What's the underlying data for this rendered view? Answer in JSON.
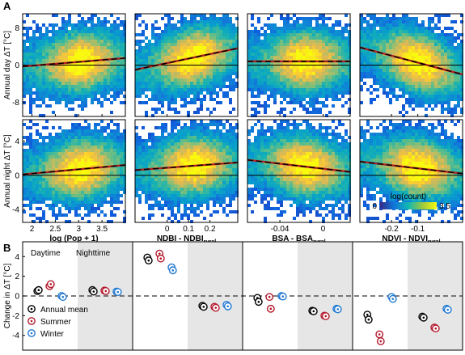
{
  "figure": {
    "panel_a": "A",
    "panel_b": "B"
  },
  "colors": {
    "annual": "#000000",
    "summer": "#b2182b",
    "winter": "#1f78d1",
    "shade": "#e6e6e6",
    "trend": "#b22222"
  },
  "chart_data": [
    {
      "type": "heatmap",
      "id": "row-day",
      "ylabel": "Annual day ΔT [°C]",
      "ylim": [
        -11,
        11
      ],
      "yticks": [
        -8,
        0,
        8
      ],
      "panels": [
        {
          "xlabel": "",
          "xlim": [
            1.8,
            4.0
          ],
          "xticks": [
            2,
            2.5,
            3,
            3.5
          ],
          "slope_line": {
            "x": [
              1.8,
              4.0
            ],
            "y": [
              -0.3,
              1.5
            ]
          }
        },
        {
          "xlabel": "",
          "xlim": [
            -0.15,
            0.33
          ],
          "xticks": [
            0,
            0.1,
            0.2
          ],
          "slope_line": {
            "x": [
              -0.15,
              0.33
            ],
            "y": [
              -1.0,
              3.6
            ]
          }
        },
        {
          "xlabel": "",
          "xlim": [
            -0.07,
            0.025
          ],
          "xticks": [
            -0.04,
            0
          ],
          "slope_line": {
            "x": [
              -0.07,
              0.025
            ],
            "y": [
              0.8,
              0.8
            ]
          }
        },
        {
          "xlabel": "",
          "xlim": [
            -0.32,
            0.07
          ],
          "xticks": [
            -0.2,
            -0.1
          ],
          "slope_line": {
            "x": [
              -0.32,
              0.07
            ],
            "y": [
              3.8,
              -2.0
            ]
          }
        }
      ]
    },
    {
      "type": "heatmap",
      "id": "row-night",
      "ylabel": "Annual night ΔT [°C]",
      "ylim": [
        -5.5,
        6.5
      ],
      "yticks": [
        -4,
        0,
        4
      ],
      "panels": [
        {
          "xlabel": "log (Pop + 1)",
          "xlim": [
            1.8,
            4.0
          ],
          "xticks": [
            2,
            2.5,
            3,
            3.5
          ],
          "xticklabels": [
            "2",
            "2.5",
            "3",
            "3.5"
          ],
          "slope_line": {
            "x": [
              1.8,
              4.0
            ],
            "y": [
              0.1,
              1.2
            ]
          }
        },
        {
          "xlabel": "NDBI - NDBI",
          "xlabel_sub": "rural",
          "xlim": [
            -0.15,
            0.33
          ],
          "xticks": [
            0,
            0.1,
            0.2
          ],
          "xticklabels": [
            "0",
            "0.1",
            "0.2"
          ],
          "slope_line": {
            "x": [
              -0.15,
              0.33
            ],
            "y": [
              0.6,
              1.5
            ]
          }
        },
        {
          "xlabel": "BSA - BSA",
          "xlabel_sub": "rural",
          "xlim": [
            -0.07,
            0.025
          ],
          "xticks": [
            -0.04,
            0
          ],
          "xticklabels": [
            "-0.04",
            "0"
          ],
          "slope_line": {
            "x": [
              -0.07,
              0.025
            ],
            "y": [
              1.8,
              0.4
            ]
          }
        },
        {
          "xlabel": "NDVI - NDVI",
          "xlabel_sub": "rural",
          "xlim": [
            -0.32,
            0.07
          ],
          "xticks": [
            -0.2,
            -0.1
          ],
          "xticklabels": [
            "-0.2",
            "-0.1"
          ],
          "slope_line": {
            "x": [
              -0.32,
              0.07
            ],
            "y": [
              1.6,
              0.2
            ]
          }
        }
      ],
      "colorbar": {
        "label": "log(count)",
        "min": "0",
        "max": "3.5"
      }
    },
    {
      "type": "scatter",
      "id": "change-panel",
      "ylabel": "Change in ΔT [°C]",
      "ylim": [
        -5.5,
        5.5
      ],
      "yticks": [
        -4,
        -2,
        0,
        2,
        4
      ],
      "labels": {
        "daytime": "Daytime",
        "nighttime": "Nighttime"
      },
      "legend": {
        "placement": "bottom-left",
        "entries": [
          "Annual mean",
          "Summer",
          "Winter"
        ]
      },
      "groups": [
        {
          "name": "Pop",
          "day": {
            "annual": [
              0.5,
              0.6
            ],
            "summer": [
              1.0,
              1.2
            ],
            "winter": [
              0.0,
              -0.1
            ]
          },
          "night": {
            "annual": [
              0.6,
              0.45
            ],
            "summer": [
              0.55,
              0.5
            ],
            "winter": [
              0.45,
              0.4
            ]
          }
        },
        {
          "name": "NDBI",
          "day": {
            "annual": [
              3.9,
              3.6
            ],
            "summer": [
              4.3,
              3.8
            ],
            "winter": [
              2.9,
              2.6
            ]
          },
          "night": {
            "annual": [
              -1.0,
              -1.1
            ],
            "summer": [
              -1.1,
              -1.2
            ],
            "winter": [
              -0.9,
              -1.05
            ]
          }
        },
        {
          "name": "BSA",
          "day": {
            "annual": [
              -0.2,
              -0.6
            ],
            "summer": [
              -0.1,
              -1.3
            ],
            "winter": [
              0.0,
              -0.05
            ]
          },
          "night": {
            "annual": [
              -1.5,
              -1.55
            ],
            "summer": [
              -2.0,
              -2.05
            ],
            "winter": [
              -1.3,
              -1.35
            ]
          }
        },
        {
          "name": "NDVI",
          "day": {
            "annual": [
              -1.9,
              -2.4
            ],
            "summer": [
              -3.9,
              -4.6
            ],
            "winter": [
              -0.1,
              -0.3
            ]
          },
          "night": {
            "annual": [
              -2.1,
              -2.2
            ],
            "summer": [
              -3.2,
              -3.3
            ],
            "winter": [
              -1.3,
              -1.4
            ]
          }
        }
      ]
    }
  ]
}
